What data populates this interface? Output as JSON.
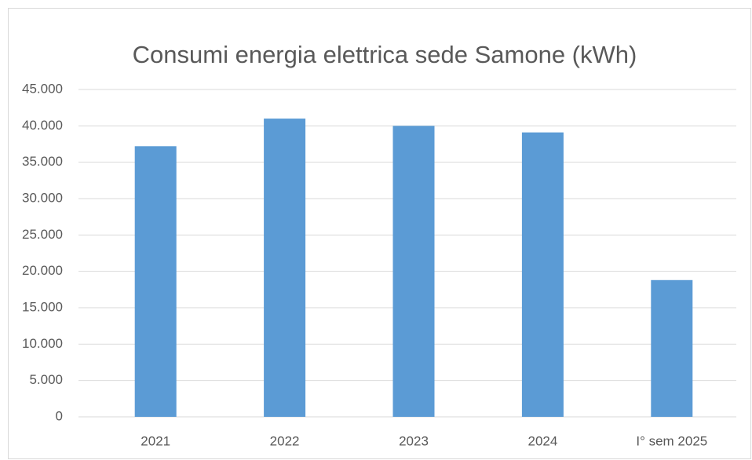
{
  "chart_data": {
    "type": "bar",
    "title": "Consumi energia elettrica sede Samone (kWh)",
    "categories": [
      "2021",
      "2022",
      "2023",
      "2024",
      "I° sem 2025"
    ],
    "values": [
      37200,
      41000,
      40000,
      39100,
      18800
    ],
    "color": "#5b9bd5",
    "ylim": [
      0,
      45000
    ],
    "yticks": [
      0,
      {
        "value": 5000,
        "label": "5.000"
      },
      {
        "value": 10000,
        "label": "10.000"
      },
      {
        "value": 15000,
        "label": "15.000"
      },
      {
        "value": 20000,
        "label": "20.000"
      },
      {
        "value": 25000,
        "label": "25.000"
      },
      {
        "value": 30000,
        "label": "30.000"
      },
      {
        "value": 35000,
        "label": "35.000"
      },
      {
        "value": 40000,
        "label": "40.000"
      },
      {
        "value": 45000,
        "label": "45.000"
      }
    ],
    "grid": true
  }
}
